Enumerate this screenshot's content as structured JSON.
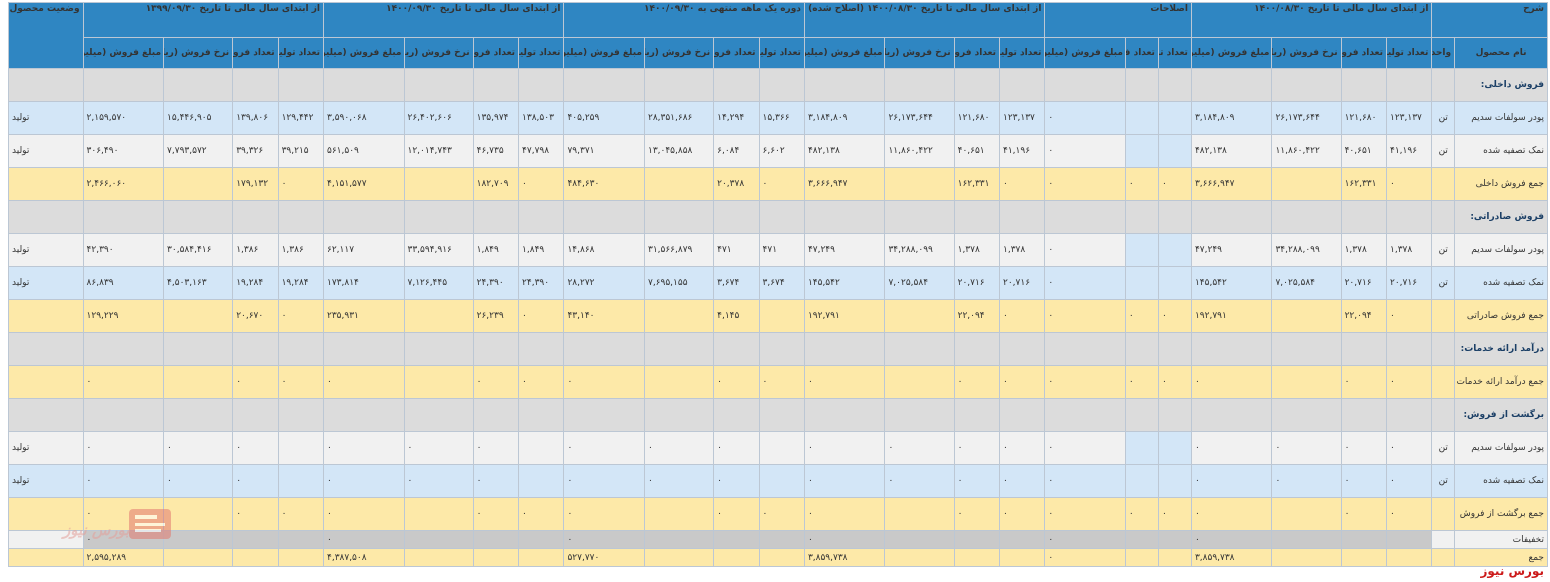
{
  "columns": {
    "groups": [
      "شرح",
      "از ابتدای سال مالی تا تاریخ ۱۴۰۰/۰۸/۳۰",
      "اصلاحات",
      "از ابتدای سال مالی تا تاریخ ۱۴۰۰/۰۸/۳۰ (اصلاح شده)",
      "دوره یک ماهه منتهی به ۱۴۰۰/۰۹/۳۰",
      "از ابتدای سال مالی تا تاریخ ۱۴۰۰/۰۹/۳۰",
      "از ابتدای سال مالی تا تاریخ ۱۳۹۹/۰۹/۳۰",
      "وضعیت محصول-واحد"
    ],
    "sub_desc": [
      "نام محصول",
      "واحد"
    ],
    "sub4": [
      "تعداد تولید",
      "تعداد فروش",
      "نرخ فروش (ریال)",
      "مبلغ فروش (میلیون ریال)"
    ],
    "sub3": [
      "تعداد تولید",
      "تعداد فروش",
      "مبلغ فروش (میلیون ریال)"
    ]
  },
  "rows": [
    {
      "type": "sec",
      "name": "فروش داخلی:",
      "unit": "",
      "status": "",
      "cells": [
        "",
        "",
        "",
        "",
        "",
        "",
        "",
        "",
        "",
        "",
        "",
        "",
        "",
        "",
        "",
        "",
        "",
        "",
        "",
        "",
        "",
        "",
        "",
        "",
        ""
      ]
    },
    {
      "type": "blue",
      "name": "پودر سولفات سدیم",
      "unit": "تن",
      "status": "تولید",
      "cells": [
        "۱۲۳,۱۳۷",
        "۱۲۱,۶۸۰",
        "۲۶,۱۷۳,۶۴۴",
        "۳,۱۸۴,۸۰۹",
        "",
        "",
        "۰",
        "۱۲۳,۱۳۷",
        "۱۲۱,۶۸۰",
        "۲۶,۱۷۳,۶۴۴",
        "۳,۱۸۴,۸۰۹",
        "۱۵,۳۶۶",
        "۱۴,۲۹۴",
        "۲۸,۳۵۱,۶۸۶",
        "۴۰۵,۲۵۹",
        "۱۳۸,۵۰۳",
        "۱۳۵,۹۷۴",
        "۲۶,۴۰۲,۶۰۶",
        "۳,۵۹۰,۰۶۸",
        "۱۲۹,۴۴۲",
        "۱۳۹,۸۰۶",
        "۱۵,۴۴۶,۹۰۵",
        "۲,۱۵۹,۵۷۰"
      ]
    },
    {
      "type": "plain",
      "name": "نمک تصفیه شده",
      "unit": "تن",
      "status": "تولید",
      "cells": [
        "۴۱,۱۹۶",
        "۴۰,۶۵۱",
        "۱۱,۸۶۰,۴۲۲",
        "۴۸۲,۱۳۸",
        "",
        "",
        "۰",
        "۴۱,۱۹۶",
        "۴۰,۶۵۱",
        "۱۱,۸۶۰,۴۲۲",
        "۴۸۲,۱۳۸",
        "۶,۶۰۲",
        "۶,۰۸۴",
        "۱۳,۰۴۵,۸۵۸",
        "۷۹,۳۷۱",
        "۴۷,۷۹۸",
        "۴۶,۷۳۵",
        "۱۲,۰۱۴,۷۴۳",
        "۵۶۱,۵۰۹",
        "۳۹,۲۱۵",
        "۳۹,۳۲۶",
        "۷,۷۹۳,۵۷۲",
        "۳۰۶,۴۹۰"
      ]
    },
    {
      "type": "yellow",
      "name": "جمع فروش داخلی",
      "unit": "",
      "status": "",
      "cells": [
        "۰",
        "۱۶۲,۳۳۱",
        "",
        "۳,۶۶۶,۹۴۷",
        "۰",
        "۰",
        "۰",
        "۰",
        "۱۶۲,۳۳۱",
        "",
        "۳,۶۶۶,۹۴۷",
        "۰",
        "۲۰,۳۷۸",
        "",
        "۴۸۴,۶۳۰",
        "۰",
        "۱۸۲,۷۰۹",
        "",
        "۴,۱۵۱,۵۷۷",
        "۰",
        "۱۷۹,۱۳۲",
        "",
        "۲,۴۶۶,۰۶۰"
      ]
    },
    {
      "type": "sec",
      "name": "فروش صادراتی:",
      "unit": "",
      "status": "",
      "cells": [
        "",
        "",
        "",
        "",
        "",
        "",
        "",
        "",
        "",
        "",
        "",
        "",
        "",
        "",
        "",
        "",
        "",
        "",
        "",
        "",
        "",
        "",
        "",
        ""
      ]
    },
    {
      "type": "plain",
      "name": "پودر سولفات سدیم",
      "unit": "تن",
      "status": "تولید",
      "cells": [
        "۱,۳۷۸",
        "۱,۳۷۸",
        "۳۴,۲۸۸,۰۹۹",
        "۴۷,۲۴۹",
        "",
        "",
        "۰",
        "۱,۳۷۸",
        "۱,۳۷۸",
        "۳۴,۲۸۸,۰۹۹",
        "۴۷,۲۴۹",
        "۴۷۱",
        "۴۷۱",
        "۳۱,۵۶۶,۸۷۹",
        "۱۴,۸۶۸",
        "۱,۸۴۹",
        "۱,۸۴۹",
        "۳۳,۵۹۴,۹۱۶",
        "۶۲,۱۱۷",
        "۱,۳۸۶",
        "۱,۳۸۶",
        "۳۰,۵۸۴,۴۱۶",
        "۴۲,۳۹۰"
      ]
    },
    {
      "type": "blue",
      "name": "نمک تصفیه شده",
      "unit": "تن",
      "status": "تولید",
      "cells": [
        "۲۰,۷۱۶",
        "۲۰,۷۱۶",
        "۷,۰۲۵,۵۸۴",
        "۱۴۵,۵۴۲",
        "",
        "",
        "۰",
        "۲۰,۷۱۶",
        "۲۰,۷۱۶",
        "۷,۰۲۵,۵۸۴",
        "۱۴۵,۵۴۲",
        "۳,۶۷۴",
        "۳,۶۷۴",
        "۷,۶۹۵,۱۵۵",
        "۲۸,۲۷۲",
        "۲۴,۳۹۰",
        "۲۴,۳۹۰",
        "۷,۱۲۶,۴۴۵",
        "۱۷۳,۸۱۴",
        "۱۹,۲۸۴",
        "۱۹,۲۸۴",
        "۴,۵۰۳,۱۶۳",
        "۸۶,۸۳۹"
      ]
    },
    {
      "type": "yellow",
      "name": "جمع فروش صادراتی",
      "unit": "",
      "status": "",
      "cells": [
        "۰",
        "۲۲,۰۹۴",
        "",
        "۱۹۲,۷۹۱",
        "۰",
        "۰",
        "۰",
        "۰",
        "۲۲,۰۹۴",
        "",
        "۱۹۲,۷۹۱",
        "",
        "۴,۱۴۵",
        "",
        "۴۳,۱۴۰",
        "۰",
        "۲۶,۲۳۹",
        "",
        "۲۳۵,۹۳۱",
        "۰",
        "۲۰,۶۷۰",
        "",
        "۱۲۹,۲۲۹"
      ]
    },
    {
      "type": "sec",
      "name": "درآمد ارائه خدمات:",
      "unit": "",
      "status": "",
      "cells": [
        "",
        "",
        "",
        "",
        "",
        "",
        "",
        "",
        "",
        "",
        "",
        "",
        "",
        "",
        "",
        "",
        "",
        "",
        "",
        "",
        "",
        "",
        "",
        ""
      ]
    },
    {
      "type": "yellow",
      "name": "جمع درآمد ارائه خدمات",
      "unit": "",
      "status": "",
      "cells": [
        "۰",
        "۰",
        "",
        "۰",
        "۰",
        "۰",
        "۰",
        "۰",
        "۰",
        "",
        "۰",
        "۰",
        "۰",
        "",
        "۰",
        "۰",
        "۰",
        "",
        "۰",
        "۰",
        "۰",
        "",
        "۰"
      ]
    },
    {
      "type": "sec",
      "name": "برگشت از فروش:",
      "unit": "",
      "status": "",
      "cells": [
        "",
        "",
        "",
        "",
        "",
        "",
        "",
        "",
        "",
        "",
        "",
        "",
        "",
        "",
        "",
        "",
        "",
        "",
        "",
        "",
        "",
        "",
        "",
        ""
      ]
    },
    {
      "type": "plain",
      "name": "پودر سولفات سدیم",
      "unit": "تن",
      "status": "تولید",
      "cells": [
        "۰",
        "۰",
        "۰",
        "۰",
        "",
        "",
        "۰",
        "۰",
        "۰",
        "۰",
        "۰",
        "",
        "۰",
        "۰",
        "۰",
        "",
        "۰",
        "۰",
        "۰",
        "",
        "۰",
        "۰",
        "۰"
      ]
    },
    {
      "type": "blue",
      "name": "نمک تصفیه شده",
      "unit": "تن",
      "status": "تولید",
      "cells": [
        "۰",
        "۰",
        "۰",
        "۰",
        "",
        "",
        "۰",
        "۰",
        "۰",
        "۰",
        "۰",
        "",
        "۰",
        "۰",
        "۰",
        "",
        "۰",
        "۰",
        "۰",
        "",
        "۰",
        "۰",
        "۰"
      ]
    },
    {
      "type": "yellow",
      "name": "جمع برگشت از فروش",
      "unit": "",
      "status": "",
      "cells": [
        "۰",
        "۰",
        "",
        "۰",
        "۰",
        "۰",
        "۰",
        "۰",
        "۰",
        "",
        "۰",
        "۰",
        "۰",
        "",
        "۰",
        "۰",
        "۰",
        "",
        "۰",
        "۰",
        "۰",
        "",
        "۰"
      ]
    },
    {
      "type": "plain",
      "name": "تخفیفات",
      "unit": "",
      "status": "",
      "cells": [
        "",
        "",
        "",
        "۰",
        "",
        "",
        "۰",
        "",
        "",
        "",
        "۰",
        "",
        "",
        "",
        "۰",
        "",
        "",
        "",
        "۰",
        "",
        "",
        "",
        "۰"
      ]
    },
    {
      "type": "yellow",
      "name": "جمع",
      "unit": "",
      "status": "",
      "cells": [
        "",
        "",
        "",
        "۳,۸۵۹,۷۳۸",
        "",
        "",
        "۰",
        "",
        "",
        "",
        "۳,۸۵۹,۷۳۸",
        "",
        "",
        "",
        "۵۲۷,۷۷۰",
        "",
        "",
        "",
        "۴,۳۸۷,۵۰۸",
        "",
        "",
        "",
        "۲,۵۹۵,۲۸۹"
      ]
    }
  ],
  "brand": {
    "footer": "بورس نیوز",
    "watermark": "بورس نیوز"
  }
}
